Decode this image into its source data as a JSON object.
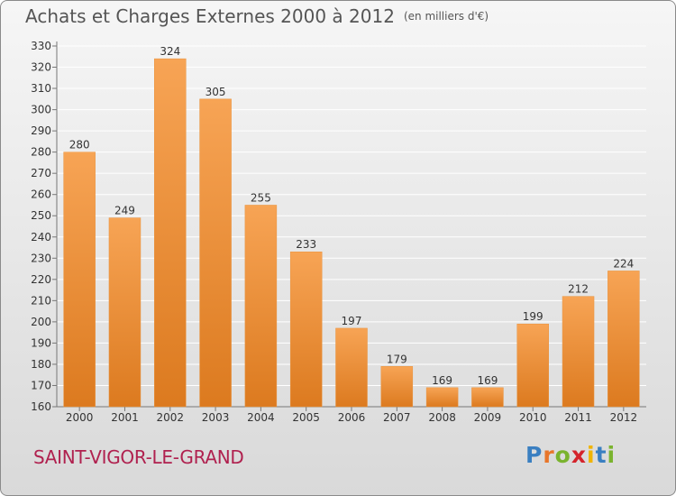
{
  "header": {
    "title": "Achats et Charges Externes 2000 à 2012",
    "unit": "(en milliers d'€)"
  },
  "footer": {
    "place": "SAINT-VIGOR-LE-GRAND",
    "logo_letters": [
      "P",
      "r",
      "o",
      "x",
      "i",
      "t",
      "i"
    ]
  },
  "colors": {
    "bar_light": "#f7a455",
    "bar_dark": "#dc7a1f",
    "grid": "#ffffff",
    "text": "#333333"
  },
  "chart_data": {
    "type": "bar",
    "categories": [
      "2000",
      "2001",
      "2002",
      "2003",
      "2004",
      "2005",
      "2006",
      "2007",
      "2008",
      "2009",
      "2010",
      "2011",
      "2012"
    ],
    "values": [
      280,
      249,
      324,
      305,
      255,
      233,
      197,
      179,
      169,
      169,
      199,
      212,
      224
    ],
    "title": "Achats et Charges Externes 2000 à 2012",
    "subtitle": "(en milliers d'€)",
    "xlabel": "",
    "ylabel": "",
    "ylim": [
      160,
      330
    ],
    "ytick_step": 10,
    "grid": true,
    "data_labels": true
  }
}
